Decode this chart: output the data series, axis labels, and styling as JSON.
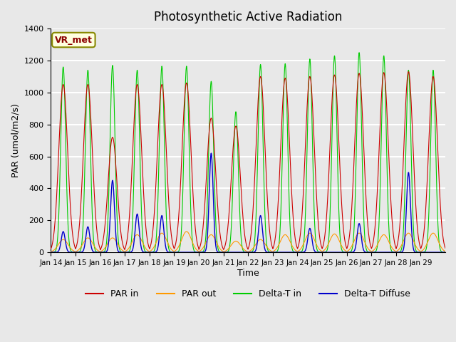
{
  "title": "Photosynthetic Active Radiation",
  "xlabel": "Time",
  "ylabel": "PAR (umol/m2/s)",
  "ylim": [
    0,
    1400
  ],
  "yticks": [
    0,
    200,
    400,
    600,
    800,
    1000,
    1200,
    1400
  ],
  "background_color": "#e8e8e8",
  "plot_bg_color": "#e8e8e8",
  "grid_color": "white",
  "line_colors": {
    "PAR in": "#cc0000",
    "PAR out": "#ff9900",
    "Delta-T in": "#00cc00",
    "Delta-T Diffuse": "#0000cc"
  },
  "legend_labels": [
    "PAR in",
    "PAR out",
    "Delta-T in",
    "Delta-T Diffuse"
  ],
  "annotation_text": "VR_met",
  "annotation_color": "#8b0000",
  "annotation_bg": "#ffffe0",
  "days": [
    "Jan 14",
    "Jan 15",
    "Jan 16",
    "Jan 17",
    "Jan 18",
    "Jan 19",
    "Jan 20",
    "Jan 21",
    "Jan 22",
    "Jan 23",
    "Jan 24",
    "Jan 25",
    "Jan 26",
    "Jan 27",
    "Jan 28",
    "Jan 29"
  ],
  "n_points_per_day": 144,
  "peaks": {
    "PAR_in": [
      1050,
      1050,
      720,
      1050,
      1050,
      1060,
      840,
      790,
      1100,
      1090,
      1100,
      1110,
      1120,
      1125,
      1130,
      1100
    ],
    "PAR_out": [
      80,
      90,
      90,
      110,
      120,
      130,
      110,
      70,
      80,
      110,
      120,
      115,
      120,
      110,
      120,
      120
    ],
    "DeltaT_in": [
      1160,
      1140,
      1170,
      1140,
      1165,
      1165,
      1070,
      880,
      1175,
      1180,
      1210,
      1230,
      1250,
      1230,
      1140,
      1140
    ],
    "DeltaT_diff": [
      130,
      160,
      450,
      240,
      230,
      0,
      620,
      0,
      230,
      0,
      150,
      0,
      180,
      0,
      500,
      0
    ]
  }
}
